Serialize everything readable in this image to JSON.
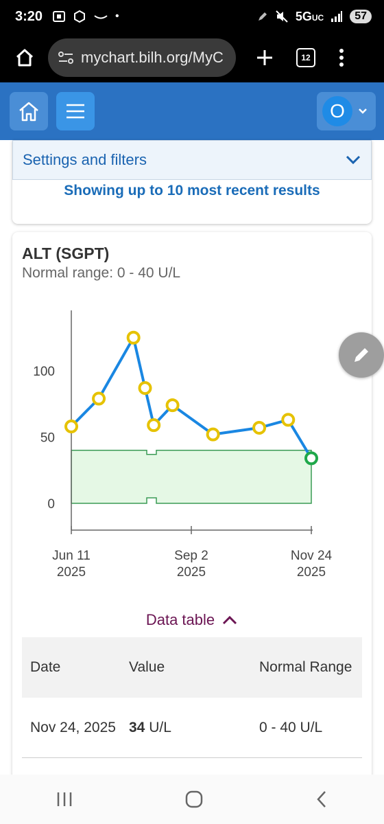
{
  "status": {
    "time": "3:20",
    "network": "5G",
    "network_sub": "UC",
    "battery": "57"
  },
  "browser": {
    "url": "mychart.bilh.org/MyC",
    "tab_count": "12"
  },
  "header": {
    "avatar_initial": "O"
  },
  "settings": {
    "title": "Settings and filters",
    "subtitle": "Showing up to 10 most recent results"
  },
  "test": {
    "name": "ALT (SGPT)",
    "range_text": "Normal range: 0 - 40 U/L"
  },
  "chart_data": {
    "type": "line",
    "title": "ALT (SGPT)",
    "ylabel": "",
    "xlabel": "",
    "ylim": [
      0,
      140
    ],
    "yticks": [
      0,
      50,
      100
    ],
    "xticks": [
      {
        "date": "2025-06-11",
        "line1": "Jun 11",
        "line2": "2025"
      },
      {
        "date": "2025-09-02",
        "line1": "Sep 2",
        "line2": "2025"
      },
      {
        "date": "2025-11-24",
        "line1": "Nov 24",
        "line2": "2025"
      }
    ],
    "xrange": [
      "2025-06-11",
      "2025-11-24"
    ],
    "normal_range": [
      0,
      40
    ],
    "series": [
      {
        "points": [
          {
            "date": "2025-06-11",
            "value": 58
          },
          {
            "date": "2025-06-30",
            "value": 79
          },
          {
            "date": "2025-07-24",
            "value": 125
          },
          {
            "date": "2025-08-01",
            "value": 87
          },
          {
            "date": "2025-08-07",
            "value": 59
          },
          {
            "date": "2025-08-20",
            "value": 74
          },
          {
            "date": "2025-09-17",
            "value": 52
          },
          {
            "date": "2025-10-19",
            "value": 57
          },
          {
            "date": "2025-11-08",
            "value": 63
          },
          {
            "date": "2025-11-24",
            "value": 34
          }
        ]
      }
    ],
    "colors": {
      "line": "#1a87e2",
      "point": "#e6c200",
      "last_point": "#1fa84a",
      "band_fill": "#e5f8e5",
      "band_stroke": "#3a9a55"
    }
  },
  "data_table": {
    "toggle_label": "Data table",
    "headers": [
      "Date",
      "Value",
      "Normal Range"
    ],
    "rows": [
      {
        "date": "Nov 24, 2025",
        "value": "34",
        "unit": "U/L",
        "range": "0 - 40 U/L"
      }
    ]
  }
}
